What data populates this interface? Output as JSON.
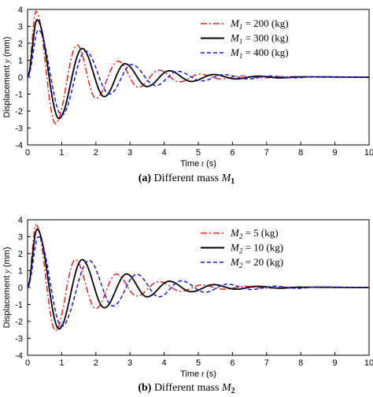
{
  "chart_data": [
    {
      "type": "line",
      "caption_label": "(a)",
      "caption_text": "Different mass",
      "caption_symbol": "M",
      "caption_sub": "1",
      "xlabel": "Time t (s)",
      "ylabel": "Displacement y (mm)",
      "xlim": [
        0,
        10
      ],
      "ylim": [
        -4,
        4
      ],
      "xticks": [
        0,
        1,
        2,
        3,
        4,
        5,
        6,
        7,
        8,
        9,
        10
      ],
      "yticks": [
        4,
        3,
        2,
        1,
        0,
        -1,
        -2,
        -3,
        -4
      ],
      "legend_position": "top-right",
      "series": [
        {
          "name": "M1 = 200 (kg)",
          "label_symbol": "M",
          "label_sub": "1",
          "label_rest": " = 200 (kg)",
          "color": "#e8201c",
          "style": "dashdot",
          "peaks": [
            [
              0,
              0
            ],
            [
              0.25,
              3.9
            ],
            [
              0.82,
              -2.75
            ],
            [
              1.45,
              1.9
            ],
            [
              2.0,
              -1.25
            ],
            [
              2.65,
              0.95
            ],
            [
              3.25,
              -0.6
            ],
            [
              3.85,
              0.42
            ],
            [
              4.45,
              -0.28
            ],
            [
              5.05,
              0.18
            ],
            [
              5.65,
              -0.1
            ],
            [
              6.25,
              0.07
            ],
            [
              6.85,
              -0.04
            ],
            [
              7.5,
              0.03
            ],
            [
              10,
              0
            ]
          ]
        },
        {
          "name": "M1 = 300 (kg)",
          "label_symbol": "M",
          "label_sub": "1",
          "label_rest": " = 300 (kg)",
          "color": "#000000",
          "style": "solid",
          "peaks": [
            [
              0,
              0
            ],
            [
              0.28,
              3.4
            ],
            [
              0.92,
              -2.45
            ],
            [
              1.6,
              1.7
            ],
            [
              2.25,
              -1.15
            ],
            [
              2.85,
              0.8
            ],
            [
              3.5,
              -0.55
            ],
            [
              4.15,
              0.38
            ],
            [
              4.8,
              -0.25
            ],
            [
              5.45,
              0.16
            ],
            [
              6.1,
              -0.1
            ],
            [
              6.75,
              0.06
            ],
            [
              7.4,
              -0.04
            ],
            [
              8.0,
              0.02
            ],
            [
              10,
              0
            ]
          ]
        },
        {
          "name": "M1 = 400 (kg)",
          "label_symbol": "M",
          "label_sub": "1",
          "label_rest": " = 400 (kg)",
          "color": "#1a1ad6",
          "style": "dashed",
          "peaks": [
            [
              0,
              0
            ],
            [
              0.32,
              2.8
            ],
            [
              1.0,
              -2.25
            ],
            [
              1.7,
              1.55
            ],
            [
              2.4,
              -1.0
            ],
            [
              3.05,
              0.75
            ],
            [
              3.75,
              -0.5
            ],
            [
              4.4,
              0.35
            ],
            [
              5.1,
              -0.22
            ],
            [
              5.75,
              0.15
            ],
            [
              6.45,
              -0.1
            ],
            [
              7.1,
              0.07
            ],
            [
              7.8,
              -0.04
            ],
            [
              8.4,
              0.02
            ],
            [
              10,
              0
            ]
          ]
        }
      ]
    },
    {
      "type": "line",
      "caption_label": "(b)",
      "caption_text": "Different mass",
      "caption_symbol": "M",
      "caption_sub": "2",
      "xlabel": "Time t (s)",
      "ylabel": "Displacement y (mm)",
      "xlim": [
        0,
        10
      ],
      "ylim": [
        -4,
        4
      ],
      "xticks": [
        0,
        1,
        2,
        3,
        4,
        5,
        6,
        7,
        8,
        9,
        10
      ],
      "yticks": [
        4,
        3,
        2,
        1,
        0,
        -1,
        -2,
        -3,
        -4
      ],
      "legend_position": "top-right",
      "series": [
        {
          "name": "M2 = 5 (kg)",
          "label_symbol": "M",
          "label_sub": "2",
          "label_rest": " = 5 (kg)",
          "color": "#e8201c",
          "style": "dashdot",
          "peaks": [
            [
              0,
              0
            ],
            [
              0.25,
              3.7
            ],
            [
              0.82,
              -2.55
            ],
            [
              1.4,
              1.65
            ],
            [
              2.0,
              -1.25
            ],
            [
              2.6,
              0.8
            ],
            [
              3.2,
              -0.5
            ],
            [
              3.85,
              0.35
            ],
            [
              4.5,
              -0.22
            ],
            [
              5.1,
              0.15
            ],
            [
              5.75,
              -0.1
            ],
            [
              6.4,
              0.07
            ],
            [
              7.0,
              -0.04
            ],
            [
              7.6,
              0.02
            ],
            [
              10,
              0
            ]
          ]
        },
        {
          "name": "M2 = 10 (kg)",
          "label_symbol": "M",
          "label_sub": "2",
          "label_rest": " = 10 (kg)",
          "color": "#000000",
          "style": "solid",
          "peaks": [
            [
              0,
              0
            ],
            [
              0.28,
              3.45
            ],
            [
              0.92,
              -2.45
            ],
            [
              1.6,
              1.65
            ],
            [
              2.25,
              -1.2
            ],
            [
              2.9,
              0.8
            ],
            [
              3.5,
              -0.55
            ],
            [
              4.15,
              0.37
            ],
            [
              4.8,
              -0.25
            ],
            [
              5.45,
              0.17
            ],
            [
              6.1,
              -0.1
            ],
            [
              6.75,
              0.07
            ],
            [
              7.4,
              -0.04
            ],
            [
              8.0,
              0.02
            ],
            [
              10,
              0
            ]
          ]
        },
        {
          "name": "M2 = 20 (kg)",
          "label_symbol": "M",
          "label_sub": "2",
          "label_rest": " = 20 (kg)",
          "color": "#1a1ad6",
          "style": "dashed",
          "peaks": [
            [
              0,
              0
            ],
            [
              0.32,
              3.0
            ],
            [
              1.0,
              -2.3
            ],
            [
              1.8,
              1.6
            ],
            [
              2.5,
              -1.1
            ],
            [
              3.2,
              0.78
            ],
            [
              3.85,
              -0.55
            ],
            [
              4.5,
              0.4
            ],
            [
              5.2,
              -0.28
            ],
            [
              5.85,
              0.2
            ],
            [
              6.55,
              -0.12
            ],
            [
              7.25,
              0.08
            ],
            [
              7.9,
              -0.05
            ],
            [
              8.5,
              0.03
            ],
            [
              10,
              0
            ]
          ]
        }
      ]
    }
  ]
}
